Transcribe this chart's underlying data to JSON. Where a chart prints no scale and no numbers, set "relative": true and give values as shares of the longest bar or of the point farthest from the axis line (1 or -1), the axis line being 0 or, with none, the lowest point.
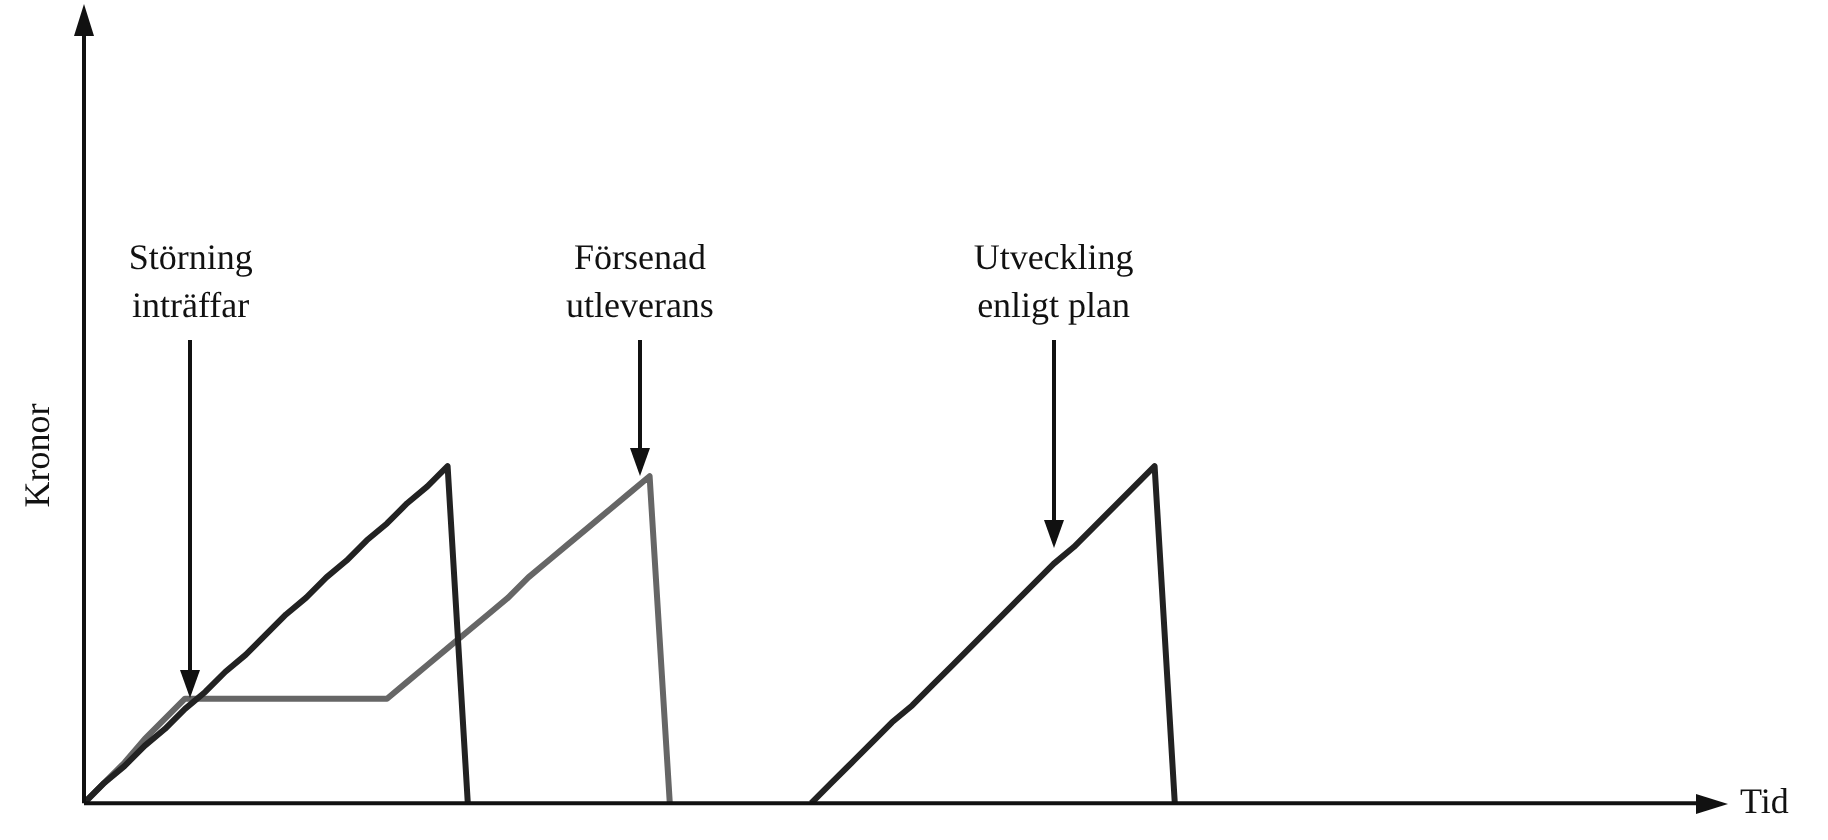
{
  "chart_data": {
    "type": "line",
    "relative": true,
    "xlabel": "Tid",
    "ylabel": "Kronor",
    "marker": "none",
    "grid": false,
    "legend": false,
    "categories": [
      null,
      null,
      null,
      null,
      null,
      null,
      null,
      null,
      null,
      null,
      null,
      null,
      null,
      null,
      null,
      null,
      null,
      null,
      null,
      null,
      null,
      null,
      null,
      null,
      null,
      null,
      null,
      null,
      null,
      null,
      null,
      null,
      null,
      null,
      null,
      null,
      null,
      null,
      null,
      null,
      null,
      null,
      null,
      null,
      null,
      null,
      null,
      null,
      null,
      null,
      null,
      null,
      null,
      null,
      null,
      null,
      null,
      null,
      null,
      null,
      null,
      null,
      null,
      null,
      null,
      null,
      null,
      null,
      null,
      null,
      null,
      null,
      null,
      null,
      null,
      null,
      null,
      null,
      null,
      null,
      null
    ],
    "series": [
      {
        "color": "#222222",
        "values": [
          0,
          0.06,
          0.11,
          0.17,
          0.22,
          0.28,
          0.33,
          0.39,
          0.44,
          0.5,
          0.56,
          0.61,
          0.67,
          0.72,
          0.78,
          0.83,
          0.89,
          0.94,
          1,
          0,
          null,
          null,
          null,
          null,
          null,
          null,
          null,
          null,
          null,
          null,
          null,
          null,
          null,
          null,
          null,
          null,
          null,
          null,
          null,
          null,
          null,
          null,
          null,
          null,
          null,
          null,
          null,
          null,
          null,
          null,
          null,
          null,
          null,
          null,
          null,
          null,
          null,
          null,
          null,
          null,
          null,
          null,
          null,
          null,
          null,
          null,
          null,
          null,
          null,
          null,
          null,
          null,
          null,
          null,
          null,
          null,
          null,
          null,
          null,
          null,
          null
        ]
      },
      {
        "color": "#666666",
        "values": [
          0,
          0.06,
          0.12,
          0.19,
          0.25,
          0.31,
          0.31,
          0.31,
          0.31,
          0.31,
          0.31,
          0.31,
          0.31,
          0.31,
          0.31,
          0.31,
          0.36,
          0.41,
          0.46,
          0.51,
          0.56,
          0.61,
          0.67,
          0.72,
          0.77,
          0.82,
          0.87,
          0.92,
          0.97,
          0,
          null,
          null,
          null,
          null,
          null,
          null,
          null,
          null,
          null,
          null,
          null,
          null,
          null,
          null,
          null,
          null,
          null,
          null,
          null,
          null,
          null,
          null,
          null,
          null,
          null,
          null,
          null,
          null,
          null,
          null,
          null,
          null,
          null,
          null,
          null,
          null,
          null,
          null,
          null,
          null,
          null,
          null,
          null,
          null,
          null,
          null,
          null,
          null,
          null,
          null,
          null
        ]
      },
      {
        "color": "#222222",
        "values": [
          null,
          null,
          null,
          null,
          null,
          null,
          null,
          null,
          null,
          null,
          null,
          null,
          null,
          null,
          null,
          null,
          null,
          null,
          null,
          null,
          null,
          null,
          null,
          null,
          null,
          null,
          null,
          null,
          null,
          null,
          null,
          null,
          null,
          null,
          null,
          null,
          0,
          0.06,
          0.12,
          0.18,
          0.24,
          0.29,
          0.35,
          0.41,
          0.47,
          0.53,
          0.59,
          0.65,
          0.71,
          0.76,
          0.82,
          0.88,
          0.94,
          1,
          0,
          null,
          null,
          null,
          null,
          null,
          null,
          null,
          null,
          null,
          null,
          null,
          null,
          null,
          null,
          null,
          null,
          null,
          null,
          null,
          null,
          null,
          null,
          null,
          null,
          null,
          null
        ]
      }
    ],
    "annotations": [
      "Störning\ninträffar",
      "Försenad\nutleverans",
      "Utveckling\nenligt plan"
    ]
  }
}
